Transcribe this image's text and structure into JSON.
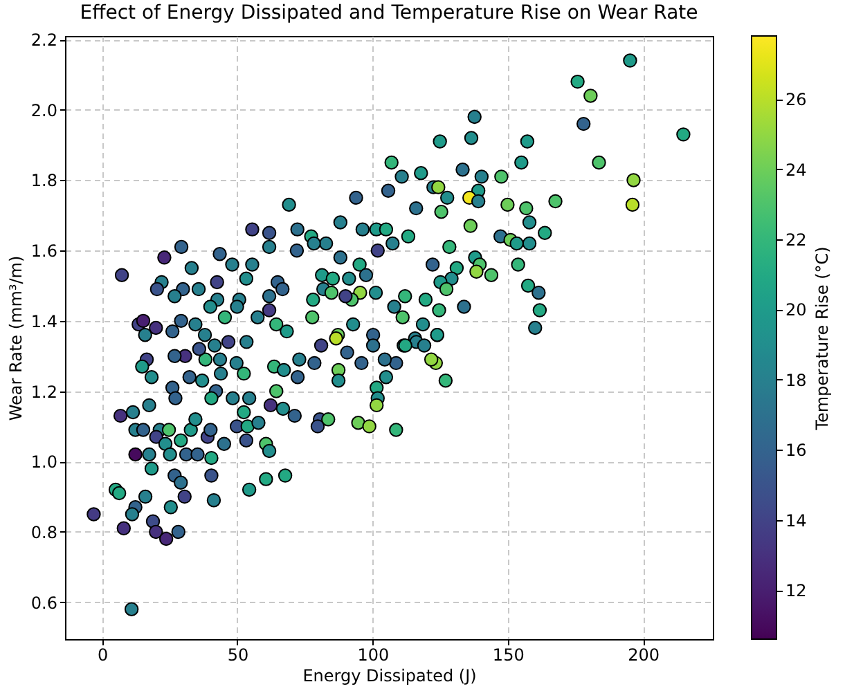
{
  "chart_data": {
    "type": "scatter",
    "title": "Effect of Energy Dissipated and Temperature Rise on Wear Rate",
    "xlabel": "Energy Dissipated (J)",
    "ylabel": "Wear Rate (mm³/m)",
    "clabel": "Temperature Rise (°C)",
    "x": [
      195.2,
      175.8,
      180.6,
      178,
      214.9,
      183.7,
      196.5,
      196.1,
      137.7,
      136.5,
      124.9,
      157.2,
      155,
      133.3,
      117.9,
      110.8,
      140.3,
      147.6,
      122.5,
      124.3,
      139.1,
      127.6,
      135.8,
      139.1,
      116.1,
      125.4,
      149.9,
      156.8,
      167.6,
      158,
      163.7,
      136.2,
      147.3,
      151,
      158,
      153.3,
      113.2,
      128.4,
      153.8,
      137.9,
      122.2,
      139.6,
      138.4,
      131.1,
      143.9,
      129.2,
      125.1,
      127.3,
      157.5,
      161.4,
      161.8,
      160.1,
      133.8,
      112,
      119.6,
      124.6,
      111.1,
      118.6,
      123.9,
      115.7,
      116.2,
      123.9,
      111.5,
      119.1,
      108.7,
      123.4,
      121.7,
      127,
      108.7,
      107,
      105.8,
      93.9,
      69.1,
      88.1,
      55.5,
      61.8,
      72.2,
      96.3,
      101.4,
      105,
      77.3,
      82.8,
      78.3,
      61.8,
      72,
      88.1,
      101.9,
      107.4,
      29.3,
      43.5,
      23,
      7.3,
      33.1,
      48.1,
      55.5,
      95.2,
      97.6,
      81.3,
      85.3,
      91.3,
      53.3,
      42.5,
      22,
      20.3,
      29.9,
      35.7,
      26.8,
      64.9,
      66.7,
      81.8,
      84.8,
      95.4,
      92.3,
      101.2,
      108,
      90,
      61.8,
      50.7,
      42.6,
      40,
      49.9,
      61.8,
      45.4,
      78,
      92.8,
      100.2,
      87.2,
      77.7,
      64.4,
      57.5,
      68.3,
      29.2,
      13.5,
      19.9,
      15.9,
      26,
      34.5,
      38,
      15.2,
      16.5,
      14.8,
      18.3,
      30.7,
      26.8,
      38.2,
      43.6,
      46.7,
      35.9,
      41.6,
      53.4,
      49.7,
      43.9,
      32.3,
      37,
      52.4,
      26,
      27.1,
      42.1,
      40.4,
      48.3,
      54.4,
      63.6,
      67.2,
      72.9,
      78.5,
      72.3,
      81,
      86.5,
      90.6,
      87.4,
      87.4,
      95.9,
      100.2,
      104.5,
      105,
      101.5,
      101.9,
      101.5,
      112.1,
      64.4,
      66.9,
      62.3,
      71.2,
      52.4,
      49.8,
      53.8,
      57.8,
      53.3,
      60.6,
      61.8,
      80.5,
      79.7,
      83.6,
      94.7,
      98.8,
      6.8,
      11.4,
      12.3,
      17.4,
      15.2,
      21.3,
      24.7,
      20,
      23.4,
      29.1,
      32.8,
      34.5,
      39,
      40.1,
      45.1,
      40.4,
      31.1,
      25.1,
      17.4,
      12.3,
      35.3,
      18.3,
      26.8,
      40.4,
      29.1,
      30.5,
      41.3,
      5,
      6.3,
      16,
      12.3,
      11.1,
      25.4,
      -3.1,
      8,
      18.8,
      19.9,
      23.7,
      28.2,
      54.4,
      60.6,
      67.7,
      10.9
    ],
    "values": [
      2.14,
      2.08,
      2.04,
      1.96,
      1.93,
      1.85,
      1.8,
      1.73,
      1.98,
      1.92,
      1.91,
      1.91,
      1.85,
      1.83,
      1.82,
      1.81,
      1.81,
      1.81,
      1.78,
      1.78,
      1.77,
      1.75,
      1.75,
      1.74,
      1.72,
      1.71,
      1.73,
      1.72,
      1.74,
      1.68,
      1.65,
      1.67,
      1.64,
      1.63,
      1.62,
      1.62,
      1.64,
      1.61,
      1.56,
      1.58,
      1.56,
      1.56,
      1.54,
      1.55,
      1.53,
      1.52,
      1.51,
      1.49,
      1.5,
      1.48,
      1.43,
      1.38,
      1.44,
      1.47,
      1.46,
      1.43,
      1.41,
      1.39,
      1.36,
      1.35,
      1.34,
      1.36,
      1.33,
      1.33,
      1.28,
      1.28,
      1.29,
      1.23,
      1.09,
      1.85,
      1.77,
      1.75,
      1.73,
      1.68,
      1.66,
      1.65,
      1.66,
      1.66,
      1.66,
      1.66,
      1.64,
      1.62,
      1.62,
      1.61,
      1.6,
      1.58,
      1.6,
      1.62,
      1.61,
      1.59,
      1.58,
      1.53,
      1.55,
      1.56,
      1.56,
      1.56,
      1.53,
      1.53,
      1.52,
      1.52,
      1.52,
      1.51,
      1.51,
      1.49,
      1.49,
      1.49,
      1.47,
      1.51,
      1.49,
      1.49,
      1.48,
      1.48,
      1.46,
      1.48,
      1.44,
      1.47,
      1.47,
      1.46,
      1.46,
      1.44,
      1.44,
      1.43,
      1.41,
      1.46,
      1.39,
      1.36,
      1.36,
      1.41,
      1.39,
      1.41,
      1.37,
      1.4,
      1.39,
      1.38,
      1.36,
      1.37,
      1.39,
      1.36,
      1.4,
      1.29,
      1.27,
      1.24,
      1.3,
      1.3,
      1.29,
      1.29,
      1.34,
      1.32,
      1.33,
      1.34,
      1.28,
      1.25,
      1.24,
      1.23,
      1.25,
      1.21,
      1.18,
      1.2,
      1.18,
      1.18,
      1.18,
      1.27,
      1.26,
      1.29,
      1.28,
      1.24,
      1.33,
      1.35,
      1.31,
      1.26,
      1.23,
      1.28,
      1.33,
      1.29,
      1.24,
      1.21,
      1.18,
      1.16,
      1.33,
      1.2,
      1.15,
      1.16,
      1.13,
      1.14,
      1.1,
      1.1,
      1.11,
      1.06,
      1.05,
      1.03,
      1.12,
      1.1,
      1.12,
      1.11,
      1.1,
      1.13,
      1.14,
      1.09,
      1.16,
      1.09,
      1.09,
      1.09,
      1.07,
      1.05,
      1.06,
      1.09,
      1.12,
      1.07,
      1.09,
      1.05,
      1.01,
      1.02,
      1.02,
      1.02,
      1.02,
      1.02,
      0.98,
      0.96,
      0.96,
      0.94,
      0.9,
      0.89,
      0.92,
      0.91,
      0.9,
      0.87,
      0.85,
      0.87,
      0.85,
      0.81,
      0.83,
      0.8,
      0.78,
      0.8,
      0.92,
      0.95,
      0.96,
      0.58
    ],
    "cvalues": [
      20,
      21,
      24,
      16,
      21,
      23,
      25,
      26,
      18,
      19,
      20,
      20,
      20,
      17,
      20,
      18,
      18,
      23,
      18,
      25,
      20,
      19,
      27.5,
      18,
      17,
      23,
      24,
      23,
      23,
      19,
      21,
      24,
      17,
      24,
      19,
      20,
      21,
      22,
      22,
      20,
      16,
      23,
      25,
      21,
      23,
      19,
      20,
      23,
      21,
      17,
      21,
      18,
      17,
      22,
      21,
      22,
      23,
      19,
      21,
      18,
      18,
      20,
      20,
      18,
      16,
      25,
      25,
      22,
      22,
      22,
      16,
      16,
      19,
      18,
      14,
      15,
      17,
      18,
      20,
      21,
      21,
      18,
      18,
      18,
      16,
      17,
      14,
      18,
      16,
      16,
      12.5,
      14,
      18,
      18,
      18,
      21,
      17,
      20,
      21,
      19,
      19,
      14,
      18,
      15,
      16,
      18,
      18,
      16,
      16,
      18,
      23,
      25,
      23,
      19,
      18,
      14,
      17,
      18,
      18,
      19,
      18,
      13.5,
      22,
      21,
      19,
      16,
      24,
      23,
      22,
      18,
      20,
      16,
      14,
      13,
      18,
      16,
      18,
      18,
      12,
      14,
      20,
      19,
      13,
      16,
      22,
      18,
      14,
      15,
      18,
      18,
      18,
      18,
      16,
      19,
      22,
      16,
      16,
      16,
      21,
      18,
      18,
      22,
      19,
      18,
      16,
      16,
      14,
      26,
      16,
      24,
      19,
      16,
      17,
      17,
      19,
      21,
      19,
      25,
      21,
      23,
      19,
      13,
      16,
      21,
      15,
      21,
      18,
      15,
      23,
      19,
      15,
      15,
      23,
      24,
      25,
      13,
      18,
      18,
      18,
      16,
      18,
      23,
      14,
      19,
      21,
      20,
      19,
      14,
      16,
      17,
      21,
      16,
      19,
      18,
      11,
      16,
      20,
      16,
      15,
      17,
      14,
      18,
      21,
      21,
      18,
      16,
      18,
      19,
      13.5,
      13,
      14.5,
      13,
      12.5,
      16,
      20,
      21,
      21,
      18
    ],
    "xlim": [
      -13.7,
      225.8
    ],
    "ylim": [
      0.495,
      2.21
    ],
    "xticks": [
      0,
      50,
      100,
      150,
      200
    ],
    "yticks": [
      0.6,
      0.8,
      {
        "value": 1,
        "label": "1.0"
      },
      1.2,
      1.4,
      1.6,
      1.8,
      {
        "value": 2,
        "label": "2.0"
      },
      2.2
    ],
    "clim": [
      10.6,
      27.8
    ],
    "cticks": [
      12,
      14,
      16,
      18,
      20,
      22,
      24,
      26
    ],
    "grid": true,
    "marker": "circle"
  }
}
